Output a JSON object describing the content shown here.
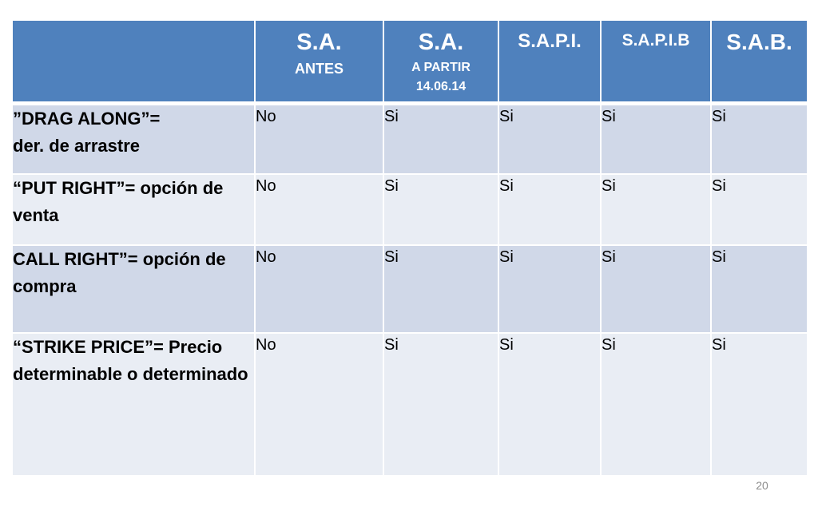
{
  "table": {
    "headers": [
      {
        "title": "",
        "subtitle": ""
      },
      {
        "title": "S.A.",
        "subtitle": "ANTES"
      },
      {
        "title": "S.A.",
        "subtitle": "A PARTIR 14.06.14"
      },
      {
        "title": "S.A.P.I.",
        "subtitle": ""
      },
      {
        "title": "S.A.P.I.B",
        "subtitle": ""
      },
      {
        "title": "S.A.B.",
        "subtitle": ""
      }
    ],
    "rows": [
      {
        "label": "”DRAG ALONG”=\nder. de arrastre",
        "values": [
          "No",
          "Si",
          "Si",
          "Si",
          "Si"
        ]
      },
      {
        "label": "“PUT RIGHT”= opción de venta",
        "values": [
          "No",
          "Si",
          "Si",
          "Si",
          "Si"
        ]
      },
      {
        "label": "CALL RIGHT”= opción de compra",
        "values": [
          "No",
          "Si",
          "Si",
          "Si",
          "Si"
        ]
      },
      {
        "label": "“STRIKE PRICE”= Precio determinable o determinado",
        "values": [
          "No",
          "Si",
          "Si",
          "Si",
          "Si"
        ]
      }
    ]
  },
  "page_number": "20",
  "colors": {
    "header_bg": "#4f81bd",
    "row_dark": "#d0d8e8",
    "row_light": "#e9edf4"
  }
}
